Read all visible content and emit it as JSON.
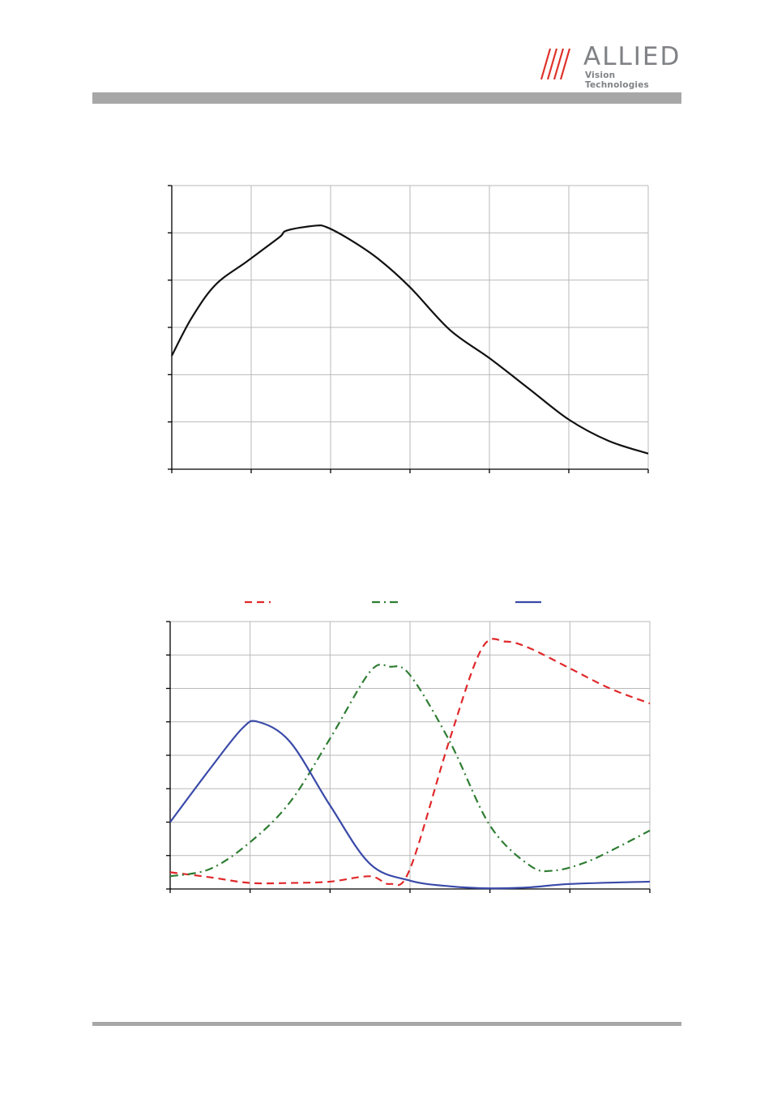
{
  "header": {
    "brand_word": "ALLIED",
    "brand_sub": "Vision Technologies",
    "brand_color": "#e0312a",
    "rule_color": "#a7a7a7"
  },
  "chart_data": [
    {
      "type": "line",
      "xlim": [
        0,
        6
      ],
      "ylim": [
        0,
        6
      ],
      "grid": true,
      "series": [
        {
          "color": "#111111",
          "style": "solid",
          "x": [
            0,
            0.25,
            0.55,
            0.95,
            1.35,
            1.45,
            1.8,
            1.95,
            2.25,
            2.6,
            3.0,
            3.5,
            4.0,
            4.5,
            5.0,
            5.5,
            6.0
          ],
          "y": [
            2.4,
            3.2,
            3.9,
            4.4,
            4.9,
            5.05,
            5.15,
            5.12,
            4.85,
            4.45,
            3.85,
            2.95,
            2.35,
            1.7,
            1.05,
            0.6,
            0.33
          ]
        }
      ]
    },
    {
      "type": "line",
      "xlim": [
        0,
        6
      ],
      "ylim": [
        0,
        8
      ],
      "grid": true,
      "legend": "top",
      "series": [
        {
          "color": "#e0282a",
          "style": "dashed",
          "x": [
            0,
            0.5,
            1.0,
            1.5,
            2.0,
            2.5,
            2.75,
            3.0,
            3.5,
            3.9,
            4.2,
            4.5,
            5.0,
            5.5,
            6.0
          ],
          "y": [
            0.5,
            0.35,
            0.18,
            0.18,
            0.22,
            0.38,
            0.15,
            0.6,
            4.5,
            7.2,
            7.4,
            7.2,
            6.6,
            6.0,
            5.55
          ]
        },
        {
          "color": "#2e7d32",
          "style": "dashdot",
          "x": [
            0,
            0.5,
            1.0,
            1.5,
            2.0,
            2.5,
            2.75,
            3.0,
            3.5,
            4.0,
            4.5,
            4.8,
            5.2,
            5.6,
            6.0
          ],
          "y": [
            0.38,
            0.6,
            1.4,
            2.6,
            4.5,
            6.5,
            6.65,
            6.4,
            4.4,
            1.9,
            0.7,
            0.55,
            0.8,
            1.25,
            1.75
          ]
        },
        {
          "color": "#3a4aa8",
          "style": "solid",
          "x": [
            0,
            0.5,
            0.9,
            1.1,
            1.5,
            2.0,
            2.5,
            3.0,
            3.5,
            4.0,
            4.5,
            5.0,
            6.0
          ],
          "y": [
            2.0,
            3.6,
            4.8,
            5.0,
            4.4,
            2.5,
            0.75,
            0.25,
            0.08,
            0.02,
            0.05,
            0.15,
            0.22
          ]
        }
      ]
    }
  ]
}
